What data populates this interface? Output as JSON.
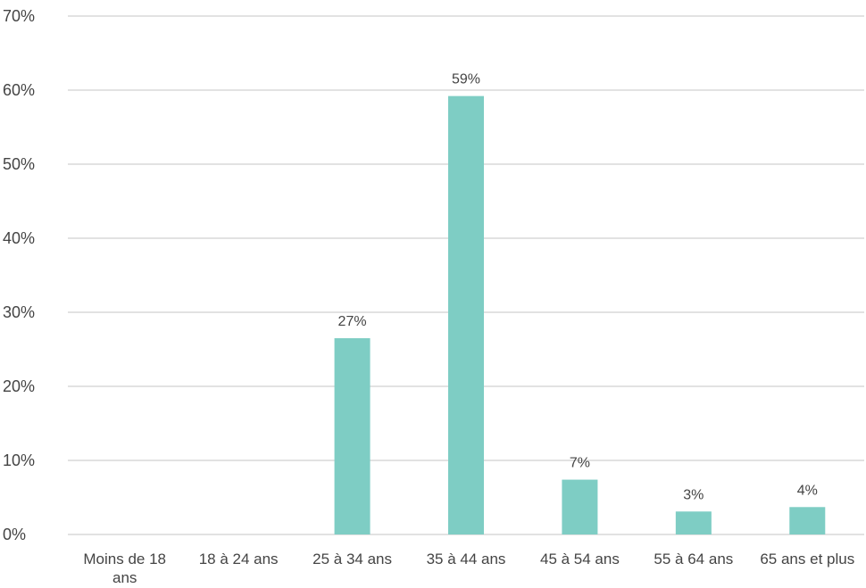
{
  "chart_data": {
    "type": "bar",
    "categories": [
      "Moins de 18 ans",
      "18 à 24 ans",
      "25 à 34 ans",
      "35 à 44 ans",
      "45 à 54 ans",
      "55 à 64 ans",
      "65 ans et plus"
    ],
    "category_lines": [
      [
        "Moins de 18",
        "ans"
      ],
      [
        "18 à 24 ans"
      ],
      [
        "25 à 34 ans"
      ],
      [
        "35 à 44 ans"
      ],
      [
        "45 à 54 ans"
      ],
      [
        "55 à 64 ans"
      ],
      [
        "65 ans et plus"
      ]
    ],
    "values": [
      0,
      0,
      26.5,
      59.2,
      7.4,
      3.1,
      3.7
    ],
    "data_labels": [
      "",
      "",
      "27%",
      "59%",
      "7%",
      "3%",
      "4%"
    ],
    "y_ticks": [
      0,
      10,
      20,
      30,
      40,
      50,
      60,
      70
    ],
    "y_tick_labels": [
      "0%",
      "10%",
      "20%",
      "30%",
      "40%",
      "50%",
      "60%",
      "70%"
    ],
    "ylim": [
      0,
      70
    ],
    "grid": true,
    "legend": "none",
    "title": "",
    "xlabel": "",
    "ylabel": "",
    "bar_color": "#7ecdc4",
    "grid_color": "#d9d9d9"
  }
}
